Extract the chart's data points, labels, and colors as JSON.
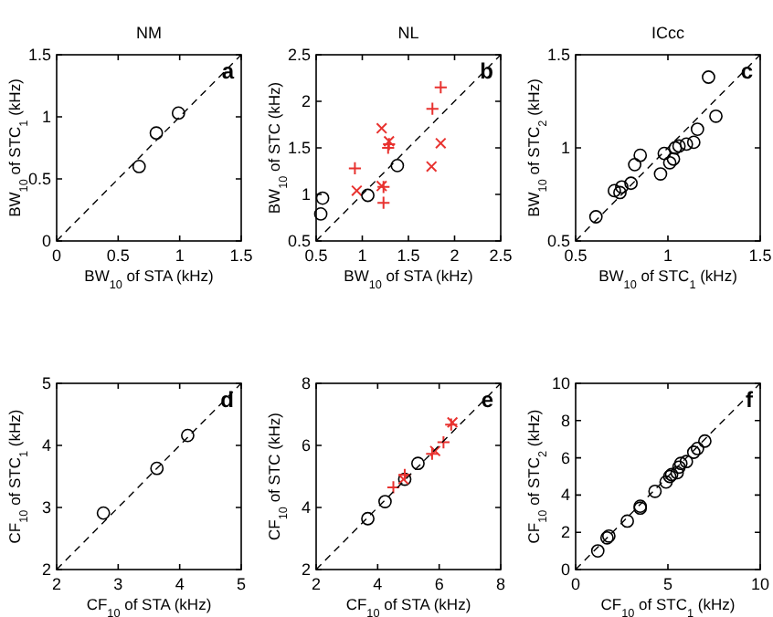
{
  "chart_data": [
    {
      "type": "scatter",
      "title": "NM",
      "xlabel": "BW$_{10}$ of STA (kHz)",
      "ylabel": "BW$_{10}$ of STC$_{1}$ (kHz)",
      "xlim": [
        0,
        1.5
      ],
      "ylim": [
        0,
        1.5
      ],
      "xticks": [
        0,
        0.5,
        1,
        1.5
      ],
      "yticks": [
        0,
        0.5,
        1,
        1.5
      ],
      "annotations": [
        "a"
      ],
      "series": [
        {
          "color": "#000000",
          "marker": "circle",
          "x": [
            0.67,
            0.81,
            0.99
          ],
          "values": [
            0.6,
            0.87,
            1.03
          ]
        },
        {
          "type": "line",
          "color": "#000000",
          "marker": "none",
          "line_style": "dashed",
          "x": [
            0,
            1.5
          ],
          "values": [
            0,
            1.5
          ]
        }
      ]
    },
    {
      "type": "scatter",
      "title": "NL",
      "xlabel": "BW$_{10}$ of STA (kHz)",
      "ylabel": "BW$_{10}$ of STC (kHz)",
      "xlim": [
        0.5,
        2.5
      ],
      "ylim": [
        0.5,
        2.5
      ],
      "xticks": [
        0.5,
        1,
        1.5,
        2,
        2.5
      ],
      "yticks": [
        0.5,
        1,
        1.5,
        2,
        2.5
      ],
      "annotations": [
        "b"
      ],
      "series": [
        {
          "color": "#000000",
          "marker": "circle",
          "x": [
            0.55,
            0.57,
            1.06,
            1.38
          ],
          "values": [
            0.79,
            0.96,
            0.99,
            1.31
          ]
        },
        {
          "color": "#e8322f",
          "marker": "cross",
          "x": [
            0.92,
            1.29,
            1.28,
            1.23,
            1.23,
            1.76,
            1.85
          ],
          "values": [
            1.28,
            1.54,
            1.5,
            1.08,
            0.91,
            1.92,
            2.15
          ]
        },
        {
          "color": "#e8322f",
          "marker": "x",
          "x": [
            1.21,
            0.94,
            1.29,
            1.21,
            1.75,
            1.85
          ],
          "values": [
            1.71,
            1.04,
            1.57,
            1.09,
            1.3,
            1.55
          ]
        },
        {
          "type": "line",
          "color": "#000000",
          "marker": "none",
          "line_style": "dashed",
          "x": [
            0.5,
            2.5
          ],
          "values": [
            0.5,
            2.5
          ]
        }
      ]
    },
    {
      "type": "scatter",
      "title": "ICcc",
      "xlabel": "BW$_{10}$ of STC$_{1}$ (kHz)",
      "ylabel": "BW$_{10}$ of STC$_{2}$ (kHz)",
      "xlim": [
        0.5,
        1.5
      ],
      "ylim": [
        0.5,
        1.5
      ],
      "xticks": [
        0.5,
        1,
        1.5
      ],
      "yticks": [
        0.5,
        1,
        1.5
      ],
      "annotations": [
        "c"
      ],
      "series": [
        {
          "color": "#000000",
          "marker": "circle",
          "x": [
            0.61,
            0.71,
            0.74,
            0.75,
            0.8,
            0.82,
            0.85,
            0.96,
            0.98,
            1.01,
            1.03,
            1.04,
            1.06,
            1.1,
            1.14,
            1.16,
            1.22,
            1.26
          ],
          "values": [
            0.63,
            0.77,
            0.76,
            0.79,
            0.81,
            0.91,
            0.96,
            0.86,
            0.97,
            0.92,
            0.94,
            1.0,
            1.01,
            1.02,
            1.03,
            1.1,
            1.38,
            1.17
          ]
        },
        {
          "type": "line",
          "color": "#000000",
          "marker": "none",
          "line_style": "dashed",
          "x": [
            0.5,
            1.5
          ],
          "values": [
            0.5,
            1.5
          ]
        }
      ]
    },
    {
      "type": "scatter",
      "xlabel": "CF$_{10}$ of STA (kHz)",
      "ylabel": "CF$_{10}$ of STC$_{1}$ (kHz)",
      "xlim": [
        2,
        5
      ],
      "ylim": [
        2,
        5
      ],
      "xticks": [
        2,
        3,
        4,
        5
      ],
      "yticks": [
        2,
        3,
        4,
        5
      ],
      "annotations": [
        "d"
      ],
      "series": [
        {
          "color": "#000000",
          "marker": "circle",
          "x": [
            2.76,
            3.63,
            4.13
          ],
          "values": [
            2.91,
            3.63,
            4.16
          ]
        },
        {
          "type": "line",
          "color": "#000000",
          "marker": "none",
          "line_style": "dashed",
          "x": [
            2,
            5
          ],
          "values": [
            2,
            5
          ]
        }
      ]
    },
    {
      "type": "scatter",
      "xlabel": "CF$_{10}$ of STA (kHz)",
      "ylabel": "CF$_{10}$ of STC (kHz)",
      "xlim": [
        2,
        8
      ],
      "ylim": [
        2,
        8
      ],
      "xticks": [
        2,
        4,
        6,
        8
      ],
      "yticks": [
        2,
        4,
        6,
        8
      ],
      "annotations": [
        "e"
      ],
      "series": [
        {
          "color": "#000000",
          "marker": "circle",
          "x": [
            3.68,
            4.24,
            4.88,
            5.31
          ],
          "values": [
            3.64,
            4.19,
            4.91,
            5.42
          ]
        },
        {
          "color": "#e8322f",
          "marker": "cross",
          "x": [
            4.51,
            4.88,
            5.77,
            6.14,
            6.39
          ],
          "values": [
            4.65,
            5.05,
            5.73,
            6.1,
            6.67
          ]
        },
        {
          "color": "#e8322f",
          "marker": "x",
          "x": [
            4.84,
            5.87,
            6.43
          ],
          "values": [
            4.91,
            5.82,
            6.74
          ]
        },
        {
          "type": "line",
          "color": "#000000",
          "marker": "none",
          "line_style": "dashed",
          "x": [
            2,
            8
          ],
          "values": [
            2,
            8
          ]
        }
      ]
    },
    {
      "type": "scatter",
      "xlabel": "CF$_{10}$ of STC$_{1}$ (kHz)",
      "ylabel": "CF$_{10}$ of STC$_{2}$ (kHz)",
      "xlim": [
        0,
        10
      ],
      "ylim": [
        0,
        10
      ],
      "xticks": [
        0,
        5,
        10
      ],
      "yticks": [
        0,
        2,
        4,
        6,
        8,
        10
      ],
      "annotations": [
        "f"
      ],
      "series": [
        {
          "color": "#000000",
          "marker": "circle",
          "x": [
            1.2,
            1.7,
            1.8,
            2.8,
            3.5,
            3.5,
            4.3,
            4.9,
            5.1,
            5.2,
            5.5,
            5.6,
            5.7,
            6.0,
            6.4,
            6.6,
            7.0
          ],
          "values": [
            1.0,
            1.7,
            1.8,
            2.6,
            3.3,
            3.4,
            4.2,
            4.7,
            5.0,
            5.1,
            5.2,
            5.5,
            5.7,
            5.8,
            6.3,
            6.5,
            6.9
          ]
        },
        {
          "type": "line",
          "color": "#000000",
          "marker": "none",
          "line_style": "dashed",
          "x": [
            0,
            10
          ],
          "values": [
            0,
            10
          ]
        }
      ]
    }
  ]
}
